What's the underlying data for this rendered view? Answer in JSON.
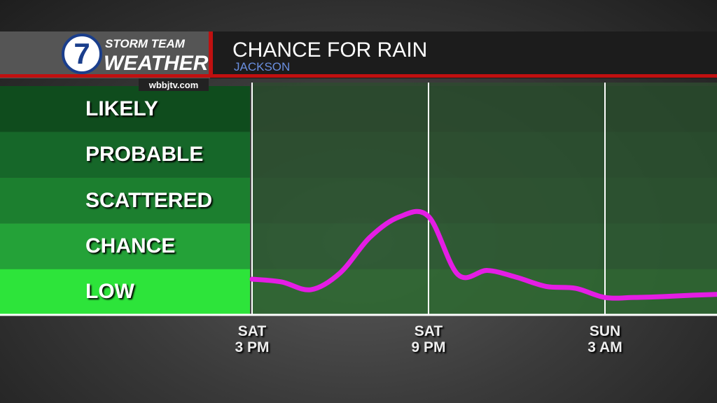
{
  "branding": {
    "logo_number": "7",
    "line1": "STORM TEAM",
    "line2": "WEATHER",
    "website": "wbbjtv.com"
  },
  "chart_data": {
    "type": "line",
    "title": "CHANCE FOR RAIN",
    "subtitle": "JACKSON",
    "categories": [
      "SAT\n3 PM",
      null,
      null,
      null,
      null,
      null,
      "SAT\n9 PM",
      null,
      null,
      null,
      null,
      null,
      "SUN\n3 AM",
      null,
      null,
      null,
      null
    ],
    "series": [
      {
        "color": "#e41de4",
        "values": [
          0.78,
          0.72,
          0.55,
          0.92,
          1.69,
          2.14,
          2.15,
          0.88,
          0.97,
          0.82,
          0.62,
          0.58,
          0.38,
          0.38,
          0.4,
          0.43,
          0.45
        ]
      }
    ],
    "ylim": [
      0,
      5
    ],
    "yticks": [
      {
        "value": 0.5,
        "label": "LOW"
      },
      {
        "value": 1.5,
        "label": "CHANCE"
      },
      {
        "value": 2.5,
        "label": "SCATTERED"
      },
      {
        "value": 3.5,
        "label": "PROBABLE"
      },
      {
        "value": 4.5,
        "label": "LIKELY"
      }
    ],
    "band_colors": [
      "#2de43a",
      "#24a238",
      "#1c7f2f",
      "#166729",
      "#0f4c1d"
    ]
  }
}
